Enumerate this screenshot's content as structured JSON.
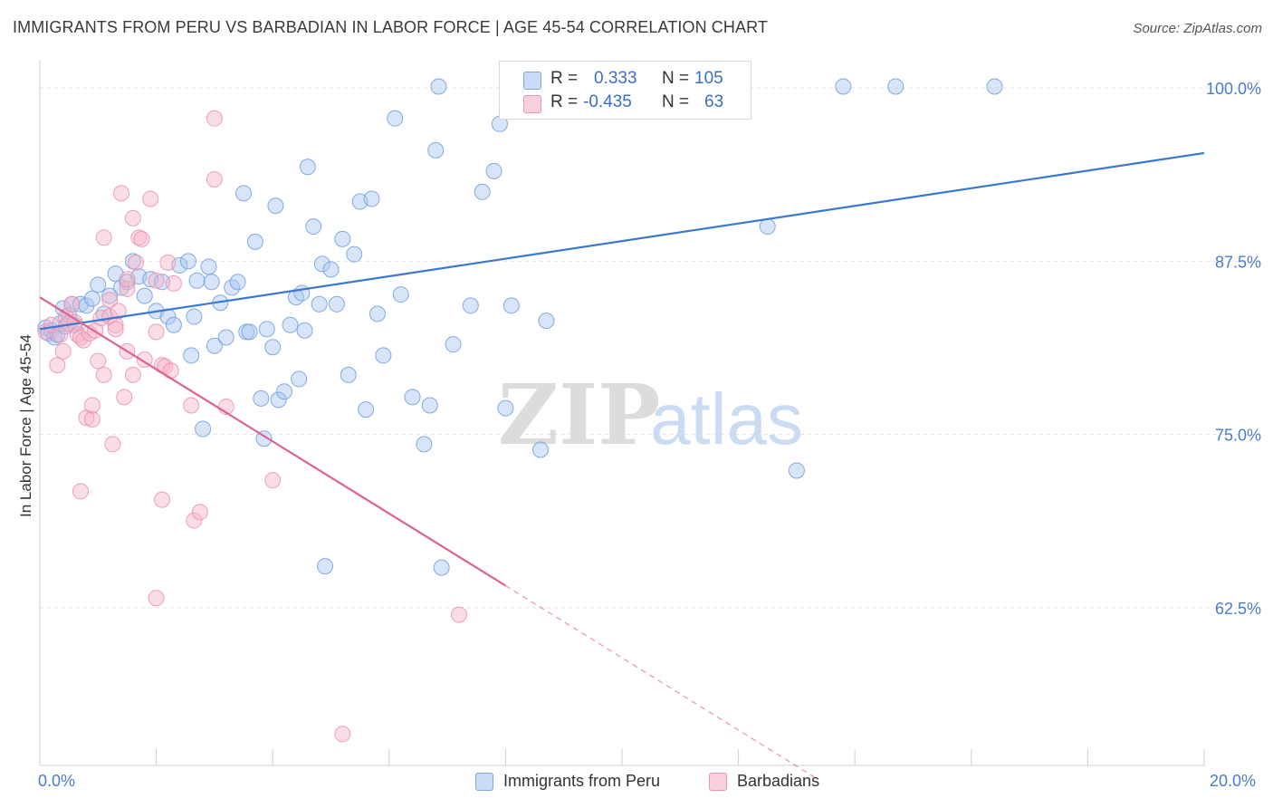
{
  "header": {
    "title": "IMMIGRANTS FROM PERU VS BARBADIAN IN LABOR FORCE | AGE 45-54 CORRELATION CHART",
    "source": "Source: ZipAtlas.com"
  },
  "watermark": {
    "zip": "ZIP",
    "atlas": "atlas"
  },
  "legend_top": {
    "rows": [
      {
        "r_label": "R =",
        "r_value": "0.333",
        "n_label": "N =",
        "n_value": "105",
        "color": "#a9c6f0"
      },
      {
        "r_label": "R =",
        "r_value": "-0.435",
        "n_label": "N =",
        "n_value": "63",
        "color": "#f6b3c8"
      }
    ]
  },
  "legend_bottom": {
    "items": [
      {
        "label": "Immigrants from Peru",
        "color": "#a9c6f0"
      },
      {
        "label": "Barbadians",
        "color": "#f6b3c8"
      }
    ]
  },
  "chart_data": {
    "type": "scatter",
    "title": "IMMIGRANTS FROM PERU VS BARBADIAN IN LABOR FORCE | AGE 45-54 CORRELATION CHART",
    "xlabel": "",
    "ylabel": "In Labor Force | Age 45-54",
    "xlim": [
      0,
      20
    ],
    "ylim": [
      50,
      101.5
    ],
    "x_tick_labels": [
      "0.0%",
      "20.0%"
    ],
    "y_ticks": [
      62.5,
      75.0,
      87.5,
      100.0
    ],
    "y_tick_labels": [
      "62.5%",
      "75.0%",
      "87.5%",
      "100.0%"
    ],
    "grid": true,
    "legend_position": "top-center",
    "colors": {
      "peru_fill": "#a9c6f0",
      "peru_line": "#3a78d0",
      "barb_fill": "#f6b3c8",
      "barb_line": "#e0628e"
    },
    "series": [
      {
        "name": "Immigrants from Peru",
        "trend": {
          "x": [
            0,
            20
          ],
          "y": [
            82.6,
            95.3
          ]
        },
        "points": [
          [
            0.1,
            82.7
          ],
          [
            0.15,
            82.3
          ],
          [
            0.2,
            82.5
          ],
          [
            0.25,
            82.0
          ],
          [
            0.3,
            82.2
          ],
          [
            0.35,
            83.0
          ],
          [
            0.4,
            84.1
          ],
          [
            0.45,
            82.8
          ],
          [
            0.5,
            83.6
          ],
          [
            0.55,
            84.4
          ],
          [
            0.6,
            82.9
          ],
          [
            0.7,
            84.4
          ],
          [
            0.8,
            84.3
          ],
          [
            0.9,
            84.8
          ],
          [
            1.0,
            85.8
          ],
          [
            1.1,
            83.7
          ],
          [
            1.2,
            85.0
          ],
          [
            1.3,
            86.6
          ],
          [
            1.4,
            85.6
          ],
          [
            1.5,
            86.0
          ],
          [
            1.6,
            87.5
          ],
          [
            1.7,
            86.4
          ],
          [
            1.8,
            85.0
          ],
          [
            1.9,
            86.2
          ],
          [
            2.1,
            86.0
          ],
          [
            2.0,
            83.9
          ],
          [
            2.2,
            83.5
          ],
          [
            2.3,
            82.9
          ],
          [
            2.4,
            87.2
          ],
          [
            2.55,
            87.5
          ],
          [
            2.6,
            80.7
          ],
          [
            2.65,
            83.5
          ],
          [
            2.7,
            86.1
          ],
          [
            2.8,
            75.4
          ],
          [
            2.9,
            87.1
          ],
          [
            2.95,
            86.0
          ],
          [
            3.0,
            81.4
          ],
          [
            3.1,
            84.5
          ],
          [
            3.2,
            82.0
          ],
          [
            3.3,
            85.6
          ],
          [
            3.4,
            86.0
          ],
          [
            3.5,
            92.4
          ],
          [
            3.55,
            82.4
          ],
          [
            3.6,
            82.4
          ],
          [
            3.7,
            88.9
          ],
          [
            3.8,
            77.6
          ],
          [
            3.85,
            74.7
          ],
          [
            3.9,
            82.6
          ],
          [
            4.0,
            81.3
          ],
          [
            4.05,
            91.5
          ],
          [
            4.1,
            77.5
          ],
          [
            4.2,
            78.1
          ],
          [
            4.3,
            82.9
          ],
          [
            4.4,
            84.9
          ],
          [
            4.45,
            79.0
          ],
          [
            4.5,
            85.2
          ],
          [
            4.55,
            82.5
          ],
          [
            4.6,
            94.3
          ],
          [
            4.7,
            90.0
          ],
          [
            4.8,
            84.4
          ],
          [
            4.85,
            87.3
          ],
          [
            4.9,
            65.5
          ],
          [
            5.0,
            86.9
          ],
          [
            5.1,
            84.4
          ],
          [
            5.2,
            89.1
          ],
          [
            5.3,
            79.3
          ],
          [
            5.4,
            88.0
          ],
          [
            5.5,
            91.8
          ],
          [
            5.6,
            76.8
          ],
          [
            5.7,
            92.0
          ],
          [
            5.8,
            83.7
          ],
          [
            5.9,
            80.7
          ],
          [
            6.1,
            97.8
          ],
          [
            6.2,
            85.1
          ],
          [
            6.4,
            77.7
          ],
          [
            6.6,
            74.3
          ],
          [
            6.7,
            77.1
          ],
          [
            6.8,
            95.5
          ],
          [
            6.85,
            100.1
          ],
          [
            6.9,
            65.4
          ],
          [
            7.1,
            81.5
          ],
          [
            7.4,
            84.3
          ],
          [
            7.6,
            92.5
          ],
          [
            7.8,
            94.0
          ],
          [
            7.9,
            97.4
          ],
          [
            8.0,
            76.9
          ],
          [
            8.1,
            84.3
          ],
          [
            8.6,
            73.9
          ],
          [
            8.7,
            83.2
          ],
          [
            9.4,
            100.1
          ],
          [
            9.7,
            100.1
          ],
          [
            10.0,
            100.1
          ],
          [
            12.0,
            100.1
          ],
          [
            12.5,
            90.0
          ],
          [
            13.0,
            72.4
          ],
          [
            13.8,
            100.1
          ],
          [
            14.7,
            100.1
          ],
          [
            16.4,
            100.1
          ]
        ]
      },
      {
        "name": "Barbadians",
        "trend": {
          "x": [
            0,
            8.0
          ],
          "y": [
            84.9,
            64.1
          ]
        },
        "trend_dashed": {
          "x": [
            8.0,
            13.3
          ],
          "y": [
            64.1,
            50.3
          ]
        },
        "points": [
          [
            0.1,
            82.4
          ],
          [
            0.2,
            82.9
          ],
          [
            0.3,
            80.0
          ],
          [
            0.35,
            82.2
          ],
          [
            0.4,
            81.0
          ],
          [
            0.45,
            83.5
          ],
          [
            0.5,
            83.0
          ],
          [
            0.55,
            84.4
          ],
          [
            0.6,
            83.1
          ],
          [
            0.65,
            82.2
          ],
          [
            0.7,
            82.0
          ],
          [
            0.75,
            81.8
          ],
          [
            0.7,
            70.9
          ],
          [
            0.8,
            76.2
          ],
          [
            0.85,
            82.3
          ],
          [
            0.9,
            76.1
          ],
          [
            0.9,
            77.1
          ],
          [
            0.95,
            82.5
          ],
          [
            1.0,
            80.3
          ],
          [
            1.05,
            83.4
          ],
          [
            1.1,
            79.3
          ],
          [
            1.1,
            89.2
          ],
          [
            1.2,
            83.5
          ],
          [
            1.2,
            84.7
          ],
          [
            1.25,
            74.3
          ],
          [
            1.3,
            82.9
          ],
          [
            1.3,
            82.6
          ],
          [
            1.35,
            83.9
          ],
          [
            1.4,
            92.4
          ],
          [
            1.45,
            77.7
          ],
          [
            1.5,
            85.5
          ],
          [
            1.5,
            81.0
          ],
          [
            1.5,
            86.2
          ],
          [
            1.6,
            79.3
          ],
          [
            1.6,
            90.6
          ],
          [
            1.65,
            87.4
          ],
          [
            1.7,
            89.2
          ],
          [
            1.75,
            89.1
          ],
          [
            1.8,
            80.4
          ],
          [
            1.9,
            92.0
          ],
          [
            2.0,
            86.1
          ],
          [
            2.0,
            82.4
          ],
          [
            2.1,
            70.3
          ],
          [
            2.1,
            80.0
          ],
          [
            2.15,
            79.9
          ],
          [
            2.2,
            87.4
          ],
          [
            2.25,
            79.6
          ],
          [
            2.3,
            85.9
          ],
          [
            2.0,
            63.2
          ],
          [
            2.6,
            77.1
          ],
          [
            2.65,
            68.8
          ],
          [
            2.75,
            69.4
          ],
          [
            3.0,
            93.4
          ],
          [
            3.0,
            97.8
          ],
          [
            3.2,
            77.0
          ],
          [
            4.0,
            71.7
          ],
          [
            5.2,
            53.4
          ],
          [
            7.2,
            62.0
          ]
        ]
      }
    ]
  }
}
